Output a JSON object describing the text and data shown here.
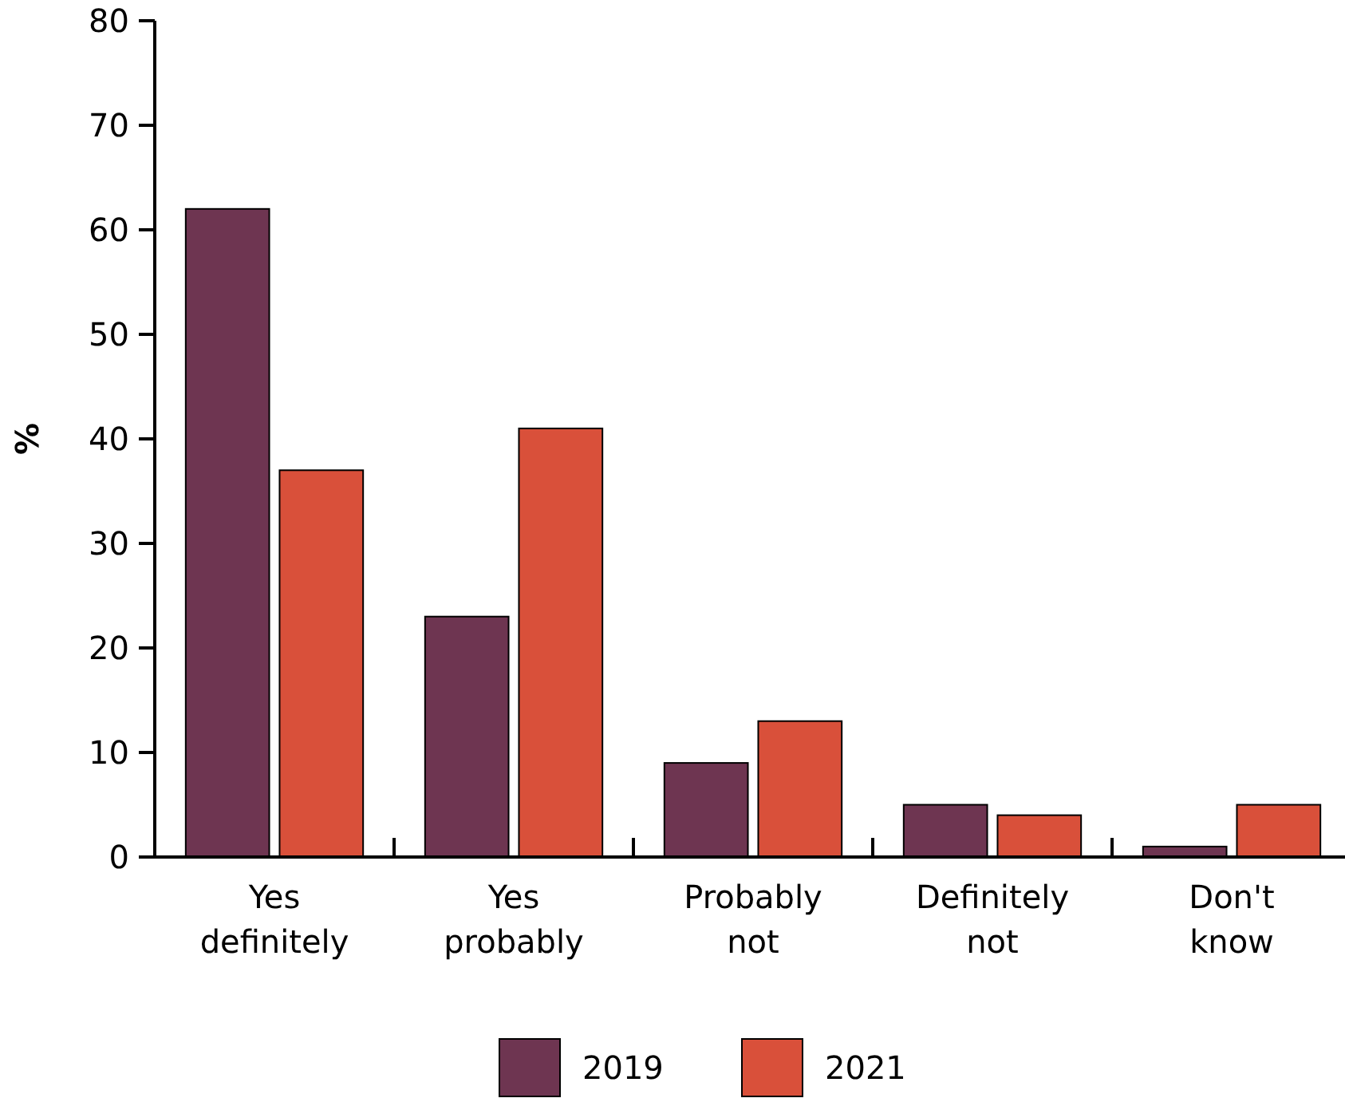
{
  "chart_data": {
    "type": "bar",
    "ylabel": "%",
    "categories": [
      "Yes definitely",
      "Yes probably",
      "Probably not",
      "Definitely not",
      "Don't know"
    ],
    "series": [
      {
        "name": "2019",
        "color": "#6e3551",
        "values": [
          62,
          23,
          9,
          5,
          1
        ]
      },
      {
        "name": "2021",
        "color": "#d9503a",
        "values": [
          37,
          41,
          13,
          4,
          5
        ]
      }
    ],
    "ylim": [
      0,
      80
    ],
    "yticks": [
      0,
      10,
      20,
      30,
      40,
      50,
      60,
      70,
      80
    ],
    "grid": false,
    "legend": "bottom"
  }
}
